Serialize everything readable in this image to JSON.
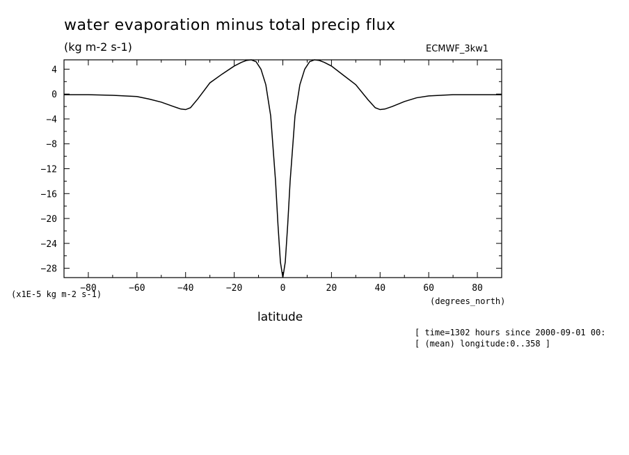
{
  "chart_data": {
    "type": "line",
    "title": "water evaporation minus total precip flux",
    "units": "(kg m-2 s-1)",
    "dataset_label": "ECMWF_3kw1",
    "ylabel": "(x1E-5 kg m-2 s-1)",
    "xlabel": "latitude",
    "x_units": "(degrees_north)",
    "xlim": [
      -90,
      90
    ],
    "ylim": [
      -29.5,
      5.5
    ],
    "x_ticks": [
      -80,
      -60,
      -40,
      -20,
      0,
      20,
      40,
      60,
      80
    ],
    "y_ticks": [
      4,
      0,
      -4,
      -8,
      -12,
      -16,
      -20,
      -24,
      -28
    ],
    "grid": false,
    "series": [
      {
        "x": [
          -90,
          -80,
          -70,
          -60,
          -55,
          -50,
          -45,
          -42,
          -40,
          -38,
          -35,
          -30,
          -25,
          -20,
          -17,
          -15,
          -13,
          -11,
          -9,
          -7,
          -5,
          -3,
          -2,
          -1,
          0,
          1,
          2,
          3,
          5,
          7,
          9,
          11,
          13,
          15,
          17,
          20,
          25,
          30,
          35,
          38,
          40,
          42,
          45,
          50,
          55,
          60,
          70,
          80,
          90
        ],
        "values": [
          -0.1,
          -0.1,
          -0.2,
          -0.4,
          -0.8,
          -1.3,
          -2.0,
          -2.4,
          -2.5,
          -2.2,
          -0.8,
          1.8,
          3.2,
          4.5,
          5.1,
          5.4,
          5.5,
          5.2,
          4.0,
          1.5,
          -3.5,
          -14.0,
          -21.0,
          -27.0,
          -29.5,
          -27.0,
          -21.0,
          -14.0,
          -3.5,
          1.5,
          4.0,
          5.2,
          5.5,
          5.4,
          5.1,
          4.5,
          3.0,
          1.5,
          -0.9,
          -2.2,
          -2.5,
          -2.4,
          -2.0,
          -1.2,
          -0.6,
          -0.3,
          -0.1,
          -0.1,
          -0.1
        ]
      }
    ]
  },
  "footer": {
    "time_text": "[ time=1302 hours since 2000-09-01 00:",
    "longitude_text": "[ (mean) longitude:0..358 ]"
  }
}
